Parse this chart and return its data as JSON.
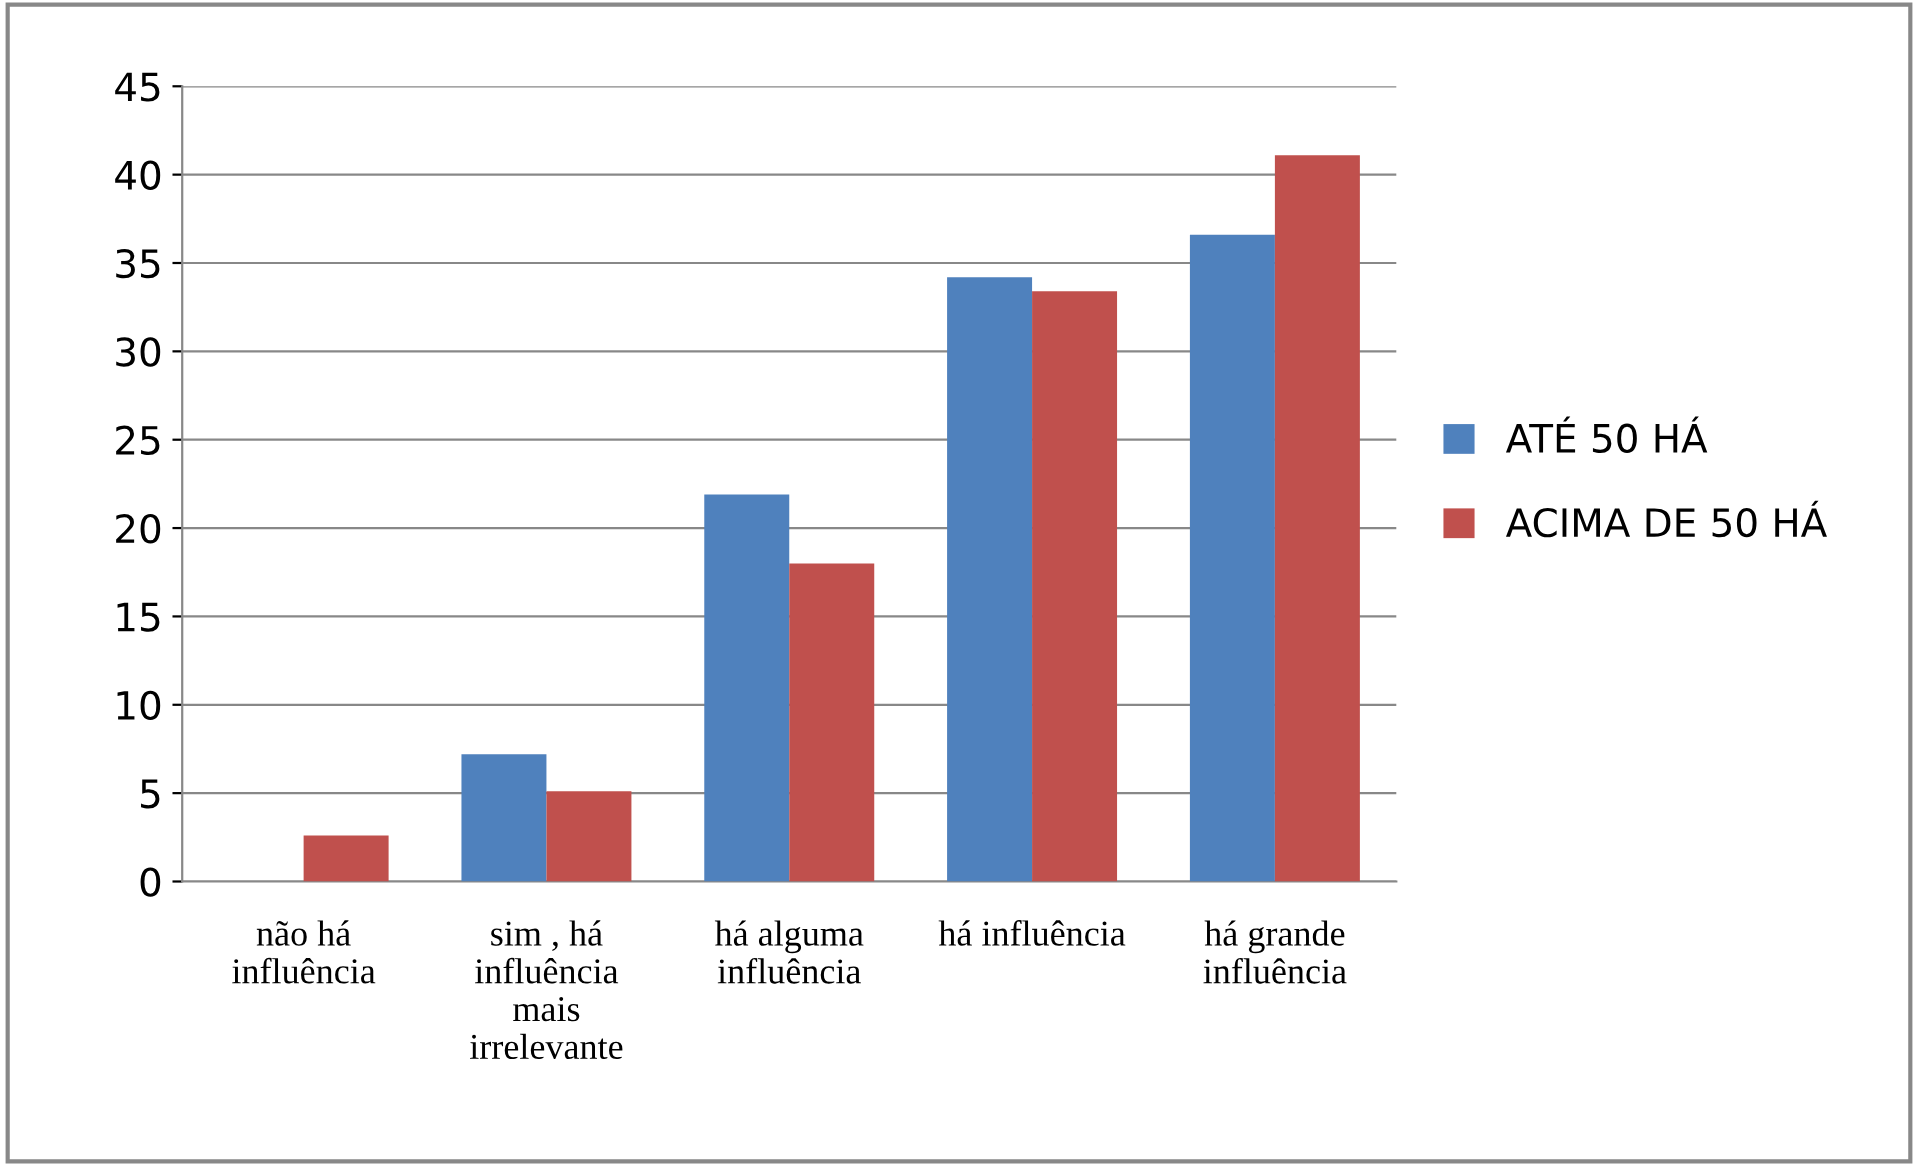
{
  "chart_data": {
    "type": "bar",
    "categories": [
      "não há\ninfluência",
      "sim , há\ninfluência\nmais\nirrelevante",
      "há alguma\ninfluência",
      "há influência",
      "há grande\ninfluência"
    ],
    "series": [
      {
        "name": "ATÉ 50 HÁ",
        "color": "#4f81bd",
        "values": [
          0,
          7.2,
          21.9,
          34.2,
          36.6
        ]
      },
      {
        "name": "ACIMA DE 50 HÁ",
        "color": "#c0504d",
        "values": [
          2.6,
          5.1,
          18.0,
          33.4,
          41.1
        ]
      }
    ],
    "ylim": [
      0,
      45
    ],
    "yticks": [
      0,
      5,
      10,
      15,
      20,
      25,
      30,
      35,
      40,
      45
    ],
    "grid": "y",
    "legend": "right"
  }
}
